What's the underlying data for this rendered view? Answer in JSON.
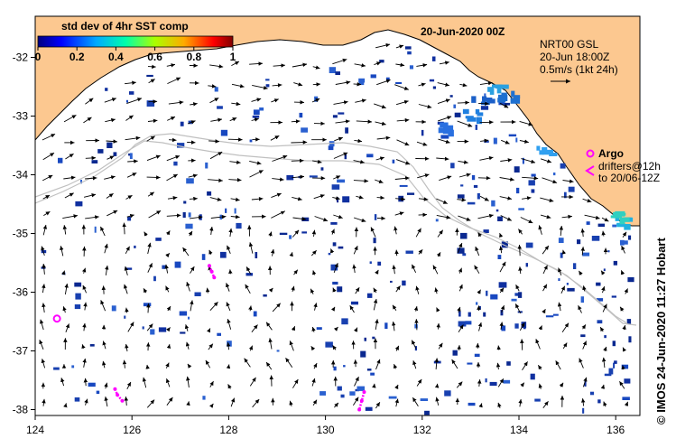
{
  "title": "20-Jun-2020 00Z",
  "colorbar": {
    "label": "std dev of 4hr SST comp",
    "ticks": [
      "0",
      "0.2",
      "0.4",
      "0.6",
      "0.8",
      "1"
    ],
    "tick_values": [
      0,
      0.2,
      0.4,
      0.6,
      0.8,
      1
    ],
    "colors": [
      "#000080",
      "#0000ff",
      "#00aaff",
      "#00ffaa",
      "#aaff00",
      "#ffaa00",
      "#ff0000",
      "#800000"
    ]
  },
  "current_key": {
    "line1": "NRT00 GSL",
    "line2": "20-Jun 18:00Z",
    "line3": "0.5m/s (1kt 24h)"
  },
  "legend": {
    "argo_label": "Argo",
    "drifters_line1": "drifters@12h",
    "drifters_line2": "to 20/06-12Z",
    "argo_color": "#ff00ff"
  },
  "axes": {
    "x_range": [
      124,
      136.5
    ],
    "y_range": [
      -38.1,
      -31.3
    ],
    "x_ticks": [
      "124",
      "126",
      "128",
      "130",
      "132",
      "134",
      "136"
    ],
    "x_tick_values": [
      124,
      126,
      128,
      130,
      132,
      134,
      136
    ],
    "y_ticks": [
      "-32",
      "-33",
      "-34",
      "-35",
      "-36",
      "-37",
      "-38"
    ],
    "y_tick_values": [
      -32,
      -33,
      -34,
      -35,
      -36,
      -37,
      -38
    ]
  },
  "colors": {
    "land": "#fcc890",
    "sea": "#ffffff",
    "coast": "#000000",
    "contour": "#c0c0c0"
  },
  "argo_floats": [
    [
      124.45,
      -36.45
    ]
  ],
  "drifter_tracks": [
    [
      [
        127.6,
        -35.55
      ],
      [
        127.65,
        -35.65
      ],
      [
        127.7,
        -35.75
      ]
    ],
    [
      [
        125.65,
        -37.65
      ],
      [
        125.7,
        -37.75
      ],
      [
        125.8,
        -37.85
      ]
    ],
    [
      [
        130.8,
        -37.7
      ],
      [
        130.75,
        -37.85
      ],
      [
        130.7,
        -38.0
      ]
    ]
  ],
  "credit": "© IMOS 24-Jun-2020 11:27 Hobart"
}
